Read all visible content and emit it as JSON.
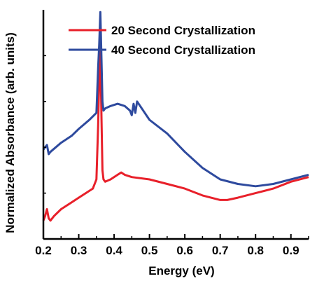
{
  "chart_data": {
    "type": "line",
    "title": "",
    "xlabel": "Energy (eV)",
    "ylabel": "Normalized Absorbance (arb. units)",
    "xlim": [
      0.2,
      0.95
    ],
    "ylim": [
      0,
      1
    ],
    "x_ticks": [
      0.2,
      0.3,
      0.4,
      0.5,
      0.6,
      0.7,
      0.8,
      0.9
    ],
    "x_tick_labels": [
      "0.2",
      "0.3",
      "0.4",
      "0.5",
      "0.6",
      "0.7",
      "0.8",
      "0.9"
    ],
    "y_ticks_visible": false,
    "grid": false,
    "legend_position": "top-right",
    "series": [
      {
        "name": "20 Second Crystallization",
        "color": "#e8202a",
        "x": [
          0.2,
          0.205,
          0.21,
          0.215,
          0.22,
          0.23,
          0.25,
          0.28,
          0.3,
          0.32,
          0.34,
          0.35,
          0.355,
          0.358,
          0.361,
          0.364,
          0.367,
          0.37,
          0.375,
          0.39,
          0.41,
          0.42,
          0.43,
          0.45,
          0.5,
          0.55,
          0.6,
          0.65,
          0.7,
          0.72,
          0.75,
          0.8,
          0.85,
          0.9,
          0.95
        ],
        "y": [
          0.08,
          0.1,
          0.13,
          0.09,
          0.08,
          0.1,
          0.13,
          0.16,
          0.18,
          0.2,
          0.22,
          0.26,
          0.5,
          0.7,
          0.84,
          0.55,
          0.3,
          0.26,
          0.25,
          0.26,
          0.28,
          0.29,
          0.28,
          0.27,
          0.26,
          0.24,
          0.22,
          0.19,
          0.17,
          0.17,
          0.18,
          0.2,
          0.22,
          0.25,
          0.27
        ]
      },
      {
        "name": "40 Second Crystallization",
        "color": "#2e4a9e",
        "x": [
          0.2,
          0.205,
          0.21,
          0.215,
          0.22,
          0.25,
          0.28,
          0.3,
          0.33,
          0.35,
          0.355,
          0.358,
          0.361,
          0.364,
          0.367,
          0.37,
          0.375,
          0.39,
          0.41,
          0.43,
          0.445,
          0.45,
          0.455,
          0.46,
          0.465,
          0.5,
          0.55,
          0.6,
          0.65,
          0.7,
          0.75,
          0.8,
          0.85,
          0.9,
          0.95
        ],
        "y": [
          0.39,
          0.4,
          0.41,
          0.37,
          0.38,
          0.42,
          0.45,
          0.48,
          0.52,
          0.55,
          0.75,
          0.85,
          0.99,
          0.8,
          0.6,
          0.56,
          0.57,
          0.58,
          0.59,
          0.58,
          0.56,
          0.54,
          0.59,
          0.55,
          0.6,
          0.52,
          0.46,
          0.38,
          0.31,
          0.26,
          0.24,
          0.23,
          0.24,
          0.26,
          0.28
        ]
      }
    ]
  }
}
